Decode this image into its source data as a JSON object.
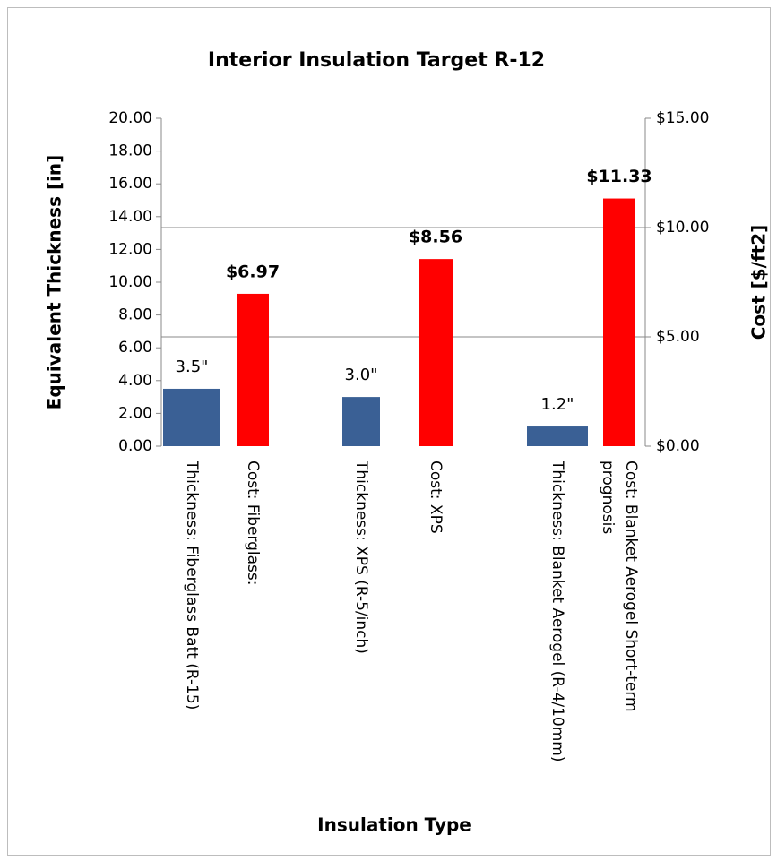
{
  "chart_data": {
    "type": "bar",
    "title": "Interior Insulation Target R-12",
    "x_label": "Insulation Type",
    "y_label": "Equivalent Thickness [in]",
    "y2_label": "Cost [$/ft2]",
    "categories": [
      "Thickness: Fiberglass Batt (R-15)",
      "Cost: Fiberglass:",
      "Thickness: XPS (R-5/inch)",
      "Cost: XPS",
      "Thickness: Blanket Aerogel (R-4/10mm)",
      "Cost: Blanket Aerogel Short-term prognosis"
    ],
    "series": [
      {
        "color": "#3a6095",
        "values": [
          3.5,
          null,
          3.0,
          null,
          1.2,
          null
        ],
        "value_labels": [
          "3.5\"",
          null,
          "3.0\"",
          null,
          "1.2\"",
          null
        ]
      },
      {
        "color": "#ff0000",
        "axis": "y2",
        "values": [
          null,
          6.97,
          null,
          8.56,
          null,
          11.33
        ],
        "value_labels": [
          null,
          "$6.97",
          null,
          "$8.56",
          null,
          "$11.33"
        ]
      }
    ],
    "ylim": [
      0,
      20
    ],
    "yticks": [
      {
        "value": 0,
        "label": "0.00"
      },
      {
        "value": 2,
        "label": "2.00"
      },
      {
        "value": 4,
        "label": "4.00"
      },
      {
        "value": 6,
        "label": "6.00"
      },
      {
        "value": 8,
        "label": "8.00"
      },
      {
        "value": 10,
        "label": "10.00"
      },
      {
        "value": 12,
        "label": "12.00"
      },
      {
        "value": 14,
        "label": "14.00"
      },
      {
        "value": 16,
        "label": "16.00"
      },
      {
        "value": 18,
        "label": "18.00"
      },
      {
        "value": 20,
        "label": "20.00"
      }
    ],
    "y2lim": [
      0,
      15
    ],
    "y2ticks": [
      {
        "value": 0,
        "label": "$0.00"
      },
      {
        "value": 5,
        "label": "$5.00"
      },
      {
        "value": 10,
        "label": "$10.00"
      },
      {
        "value": 15,
        "label": "$15.00"
      }
    ],
    "grid": "y2"
  }
}
